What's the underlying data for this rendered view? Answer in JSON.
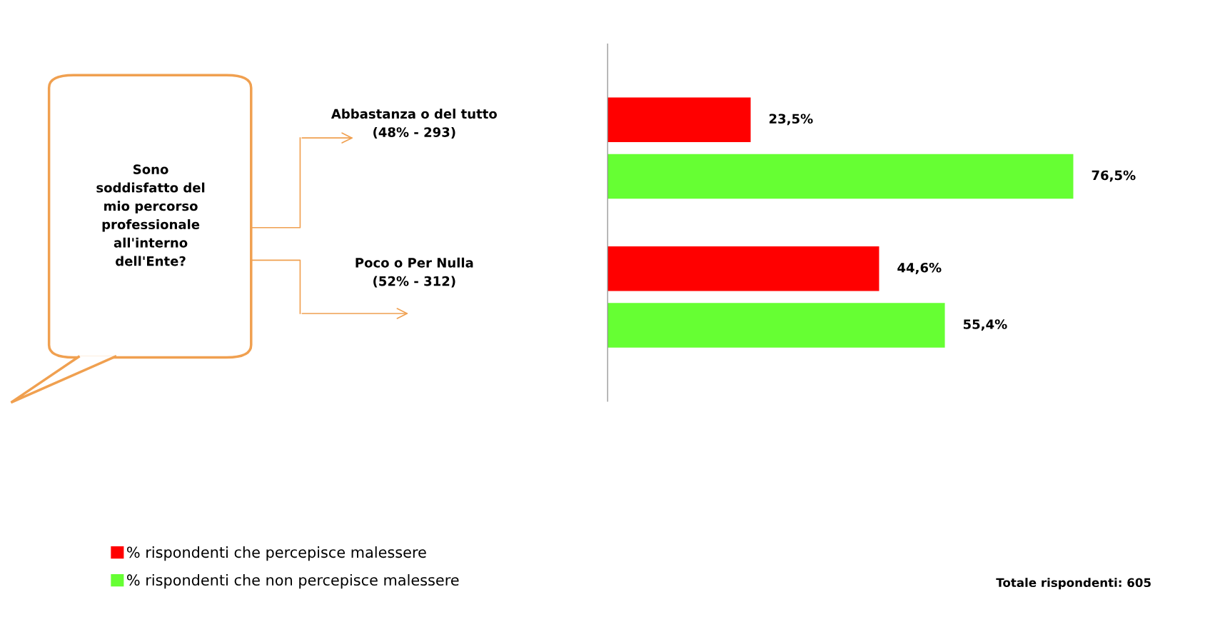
{
  "chart_data": {
    "type": "bar",
    "orientation": "horizontal",
    "categories": [
      "Abbastanza o del tutto\n(48% - 293)",
      "Poco o Per Nulla\n(52% - 312)"
    ],
    "series": [
      {
        "name": "% rispondenti che percepisce malessere",
        "color": "#ff0000",
        "values": [
          23.5,
          44.6
        ],
        "value_labels": [
          "23,5%",
          "44,6%"
        ]
      },
      {
        "name": "% rispondenti che non percepisce malessere",
        "color": "#66ff33",
        "values": [
          76.5,
          55.4
        ],
        "value_labels": [
          "76,5%",
          "55,4%"
        ]
      }
    ],
    "annotations": [
      "Sono\nsoddisfatto del\nmio percorso\nprofessionale\nall'interno\ndell'Ente?",
      "Totale rispondenti: 605"
    ],
    "legend": "bottom left",
    "grid": false
  }
}
